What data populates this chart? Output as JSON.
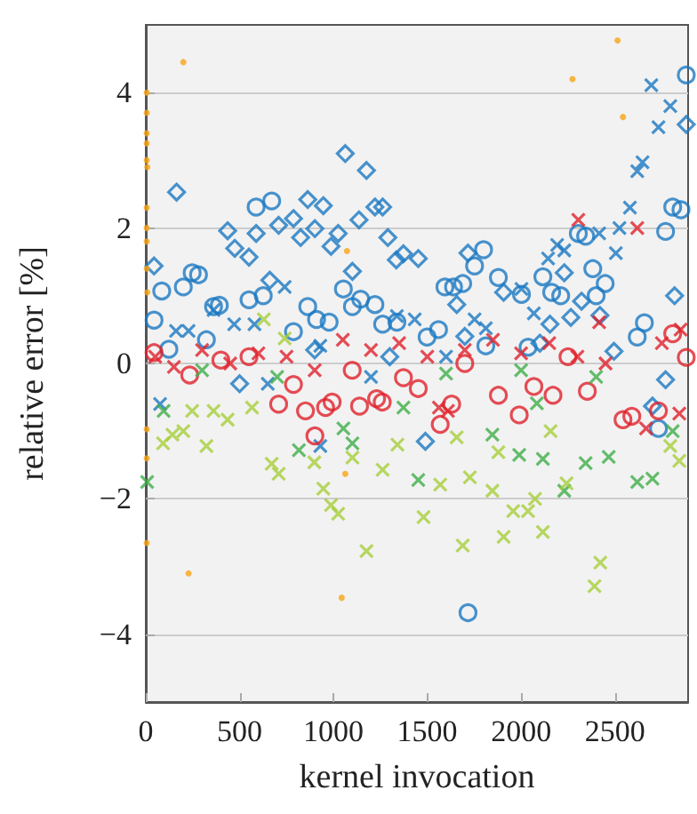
{
  "chart_data": {
    "type": "scatter",
    "xlabel": "kernel invocation",
    "ylabel": "relative error [%]",
    "xlim": [
      0,
      2890
    ],
    "ylim": [
      -5,
      5
    ],
    "xticks": [
      0,
      500,
      1000,
      1500,
      2000,
      2500
    ],
    "yticks": [
      -4,
      -2,
      0,
      2,
      4
    ],
    "grid": "y",
    "series": [
      {
        "color": "#f7a416",
        "marker": "circle",
        "x": [
          5,
          5,
          5,
          5,
          5,
          8,
          5,
          5,
          5,
          5,
          8,
          5,
          5,
          5,
          200,
          1072,
          1063,
          2514,
          2274,
          2543,
          228,
          1044
        ],
        "values": [
          4.0,
          3.7,
          3.4,
          3.25,
          3.0,
          2.9,
          2.3,
          2.0,
          1.8,
          1.4,
          1.05,
          -0.97,
          -1.4,
          -2.65,
          4.45,
          1.66,
          -1.63,
          4.77,
          4.2,
          3.64,
          -3.1,
          -3.46
        ]
      },
      {
        "color": "#1a78c2",
        "marker": "diamond",
        "x": [
          164,
          1063,
          1176,
          436,
          588,
          474,
          550,
          708,
          787,
          863,
          946,
          825,
          901,
          1025,
          987,
          1136,
          1221,
          1262,
          1290,
          1373,
          1335,
          1452,
          1101,
          44,
          661,
          1717,
          2880,
          2230,
          2322,
          2265,
          2420,
          2154,
          1657,
          1907,
          2495,
          2818,
          1490,
          2770,
          2700,
          500,
          900,
          1300,
          1700,
          2100
        ],
        "values": [
          2.53,
          3.1,
          2.85,
          1.96,
          1.92,
          1.7,
          1.57,
          2.04,
          2.14,
          2.42,
          2.33,
          1.86,
          1.99,
          1.92,
          1.73,
          2.12,
          2.31,
          2.31,
          1.86,
          1.62,
          1.53,
          1.55,
          1.36,
          1.44,
          1.23,
          1.63,
          3.53,
          1.34,
          0.92,
          0.68,
          0.71,
          0.58,
          0.87,
          1.05,
          0.18,
          1.0,
          -1.15,
          -0.24,
          -0.63,
          -0.3,
          0.2,
          0.1,
          0.4,
          0.3
        ]
      },
      {
        "color": "#1a78c2",
        "marker": "circle",
        "x": [
          671,
          588,
          247,
          281,
          200,
          85,
          44,
          361,
          392,
          626,
          550,
          863,
          910,
          977,
          1053,
          1101,
          1145,
          1221,
          1262,
          1338,
          787,
          323,
          123,
          2880,
          2808,
          2852,
          2770,
          2305,
          2344,
          1800,
          1752,
          1594,
          1640,
          1689,
          1879,
          2116,
          2382,
          2448,
          2002,
          2163,
          2211,
          2400,
          2657,
          2619,
          1499,
          1560,
          2037,
          1812,
          1717,
          2732
        ],
        "values": [
          2.4,
          2.31,
          1.34,
          1.31,
          1.13,
          1.07,
          0.64,
          0.84,
          0.86,
          1.0,
          0.94,
          0.84,
          0.65,
          0.61,
          1.1,
          0.84,
          0.95,
          0.87,
          0.58,
          0.61,
          0.47,
          0.35,
          0.21,
          4.26,
          2.31,
          2.27,
          1.95,
          1.92,
          1.88,
          1.68,
          1.44,
          1.13,
          1.13,
          1.18,
          1.27,
          1.28,
          1.4,
          1.18,
          1.02,
          1.05,
          1.0,
          1.0,
          0.6,
          0.39,
          0.39,
          0.5,
          0.24,
          0.26,
          -3.68,
          -0.96
        ]
      },
      {
        "color": "#1a78c2",
        "marker": "cross",
        "x": [
          740,
          161,
          228,
          361,
          471,
          579,
          930,
          1338,
          1433,
          2694,
          2795,
          2732,
          2619,
          2647,
          2580,
          2524,
          2505,
          2192,
          2230,
          2416,
          2144,
          2002,
          1752,
          1812,
          2068,
          76,
          930,
          650,
          1200,
          1600
        ],
        "values": [
          1.13,
          0.48,
          0.48,
          0.79,
          0.58,
          0.58,
          0.26,
          0.7,
          0.65,
          4.11,
          3.8,
          3.49,
          2.84,
          2.97,
          2.3,
          2.0,
          1.63,
          1.75,
          1.67,
          1.92,
          1.55,
          1.1,
          0.65,
          0.52,
          0.74,
          -0.6,
          -1.22,
          -0.3,
          -0.2,
          0.1
        ]
      },
      {
        "color": "#e0202a",
        "marker": "cross",
        "x": [
          2305,
          2619,
          2416,
          2843,
          2666,
          1562,
          1610,
          50,
          150,
          300,
          450,
          600,
          750,
          900,
          1050,
          1200,
          1350,
          1500,
          1700,
          1850,
          2000,
          2150,
          2300,
          2450,
          2750,
          2850
        ],
        "values": [
          2.12,
          2.0,
          0.61,
          -0.74,
          -0.96,
          -0.65,
          -0.7,
          0.1,
          -0.05,
          0.2,
          0.0,
          0.15,
          0.1,
          -0.1,
          0.35,
          0.2,
          0.3,
          0.1,
          0.2,
          0.35,
          0.15,
          0.3,
          0.1,
          0.0,
          0.3,
          0.5
        ]
      },
      {
        "color": "#e0202a",
        "marker": "circle",
        "x": [
          901,
          851,
          993,
          958,
          1139,
          1230,
          1260,
          708,
          787,
          1373,
          1452,
          1569,
          1630,
          1879,
          1990,
          2068,
          2170,
          2353,
          2543,
          2590,
          2732,
          2808,
          2880,
          44,
          234,
          400,
          550,
          1100,
          1700,
          2250
        ],
        "values": [
          -1.07,
          -0.7,
          -0.57,
          -0.65,
          -0.63,
          -0.52,
          -0.57,
          -0.6,
          -0.31,
          -0.21,
          -0.37,
          -0.9,
          -0.6,
          -0.47,
          -0.76,
          -0.34,
          -0.47,
          -0.41,
          -0.83,
          -0.78,
          -0.7,
          0.44,
          0.09,
          0.16,
          -0.17,
          0.05,
          0.1,
          -0.1,
          0.0,
          0.1
        ]
      },
      {
        "color": "#3fae49",
        "marker": "cross",
        "x": [
          7,
          95,
          816,
          1053,
          1101,
          1373,
          1452,
          1847,
          1990,
          2116,
          2344,
          2467,
          2619,
          2700,
          2230,
          2084,
          2808,
          300,
          700,
          1600,
          2000,
          2400
        ],
        "values": [
          -1.75,
          -0.7,
          -1.28,
          -0.96,
          -1.18,
          -0.65,
          -1.72,
          -1.05,
          -1.35,
          -1.41,
          -1.47,
          -1.38,
          -1.75,
          -1.7,
          -1.88,
          -0.59,
          -1.0,
          -0.1,
          -0.2,
          -0.15,
          -0.1,
          -0.2
        ]
      },
      {
        "color": "#a6ce39",
        "marker": "cross",
        "x": [
          629,
          740,
          92,
          142,
          200,
          323,
          247,
          361,
          436,
          566,
          671,
          708,
          898,
          946,
          987,
          1025,
          1176,
          1101,
          1262,
          1341,
          1480,
          1569,
          1689,
          1727,
          1847,
          1907,
          1958,
          2037,
          2074,
          2116,
          2157,
          2242,
          2422,
          2391,
          1657,
          1879,
          2795,
          2843
        ],
        "values": [
          0.65,
          0.37,
          -1.18,
          -1.05,
          -1.0,
          -1.22,
          -0.7,
          -0.7,
          -0.83,
          -0.65,
          -1.48,
          -1.63,
          -1.46,
          -1.85,
          -2.09,
          -2.22,
          -2.77,
          -1.39,
          -1.57,
          -1.2,
          -2.27,
          -1.79,
          -2.69,
          -1.68,
          -1.88,
          -2.56,
          -2.18,
          -2.18,
          -2.0,
          -2.49,
          -1.0,
          -1.77,
          -2.94,
          -3.29,
          -1.09,
          -1.31,
          -1.22,
          -1.44
        ]
      }
    ]
  }
}
